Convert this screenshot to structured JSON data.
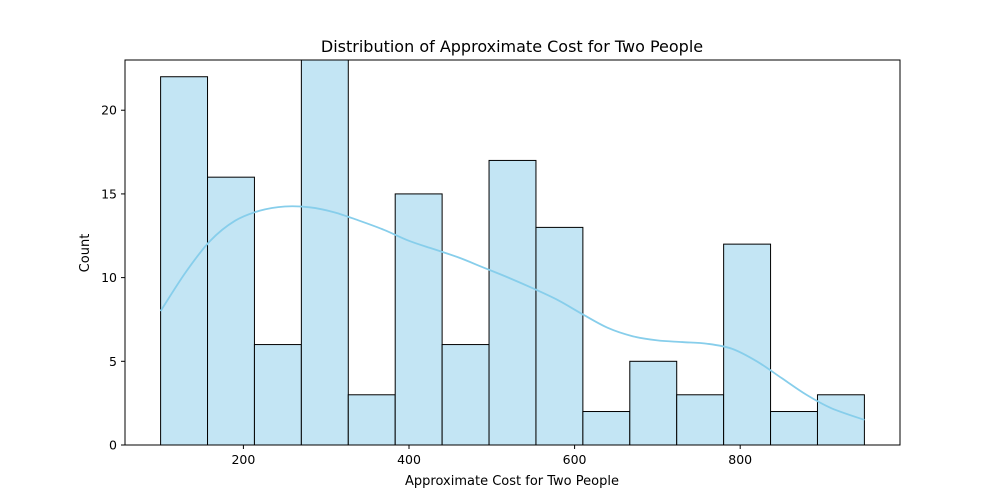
{
  "chart_data": {
    "type": "histogram",
    "title": "Distribution of Approximate Cost for Two People",
    "xlabel": "Approximate Cost for Two People",
    "ylabel": "Count",
    "xlim": [
      57,
      993
    ],
    "ylim": [
      0,
      23
    ],
    "xticks": [
      200,
      400,
      600,
      800
    ],
    "yticks": [
      0,
      5,
      10,
      15,
      20
    ],
    "bins": [
      {
        "x0": 100,
        "x1": 156.67,
        "count": 22
      },
      {
        "x0": 156.67,
        "x1": 213.33,
        "count": 16
      },
      {
        "x0": 213.33,
        "x1": 270,
        "count": 6
      },
      {
        "x0": 270,
        "x1": 326.67,
        "count": 23
      },
      {
        "x0": 326.67,
        "x1": 383.33,
        "count": 3
      },
      {
        "x0": 383.33,
        "x1": 440,
        "count": 15
      },
      {
        "x0": 440,
        "x1": 496.67,
        "count": 6
      },
      {
        "x0": 496.67,
        "x1": 553.33,
        "count": 17
      },
      {
        "x0": 553.33,
        "x1": 610,
        "count": 13
      },
      {
        "x0": 610,
        "x1": 666.67,
        "count": 2
      },
      {
        "x0": 666.67,
        "x1": 723.33,
        "count": 5
      },
      {
        "x0": 723.33,
        "x1": 780,
        "count": 3
      },
      {
        "x0": 780,
        "x1": 836.67,
        "count": 12
      },
      {
        "x0": 836.67,
        "x1": 893.33,
        "count": 2
      },
      {
        "x0": 893.33,
        "x1": 950,
        "count": 3
      }
    ],
    "kde": {
      "x": [
        100,
        130,
        160,
        190,
        220,
        250,
        280,
        310,
        340,
        370,
        400,
        430,
        460,
        490,
        520,
        550,
        580,
        610,
        640,
        670,
        700,
        730,
        760,
        790,
        820,
        850,
        880,
        910,
        950
      ],
      "y": [
        8.0,
        10.3,
        12.2,
        13.4,
        14.0,
        14.25,
        14.2,
        13.9,
        13.4,
        12.85,
        12.2,
        11.7,
        11.2,
        10.6,
        10.0,
        9.35,
        8.65,
        7.8,
        7.0,
        6.5,
        6.25,
        6.15,
        6.05,
        5.75,
        5.0,
        4.0,
        3.0,
        2.2,
        1.5
      ]
    },
    "colors": {
      "bar_fill": "#c3e5f4",
      "bar_edge": "#000000",
      "kde_line": "#87ceeb"
    },
    "grid": false
  }
}
